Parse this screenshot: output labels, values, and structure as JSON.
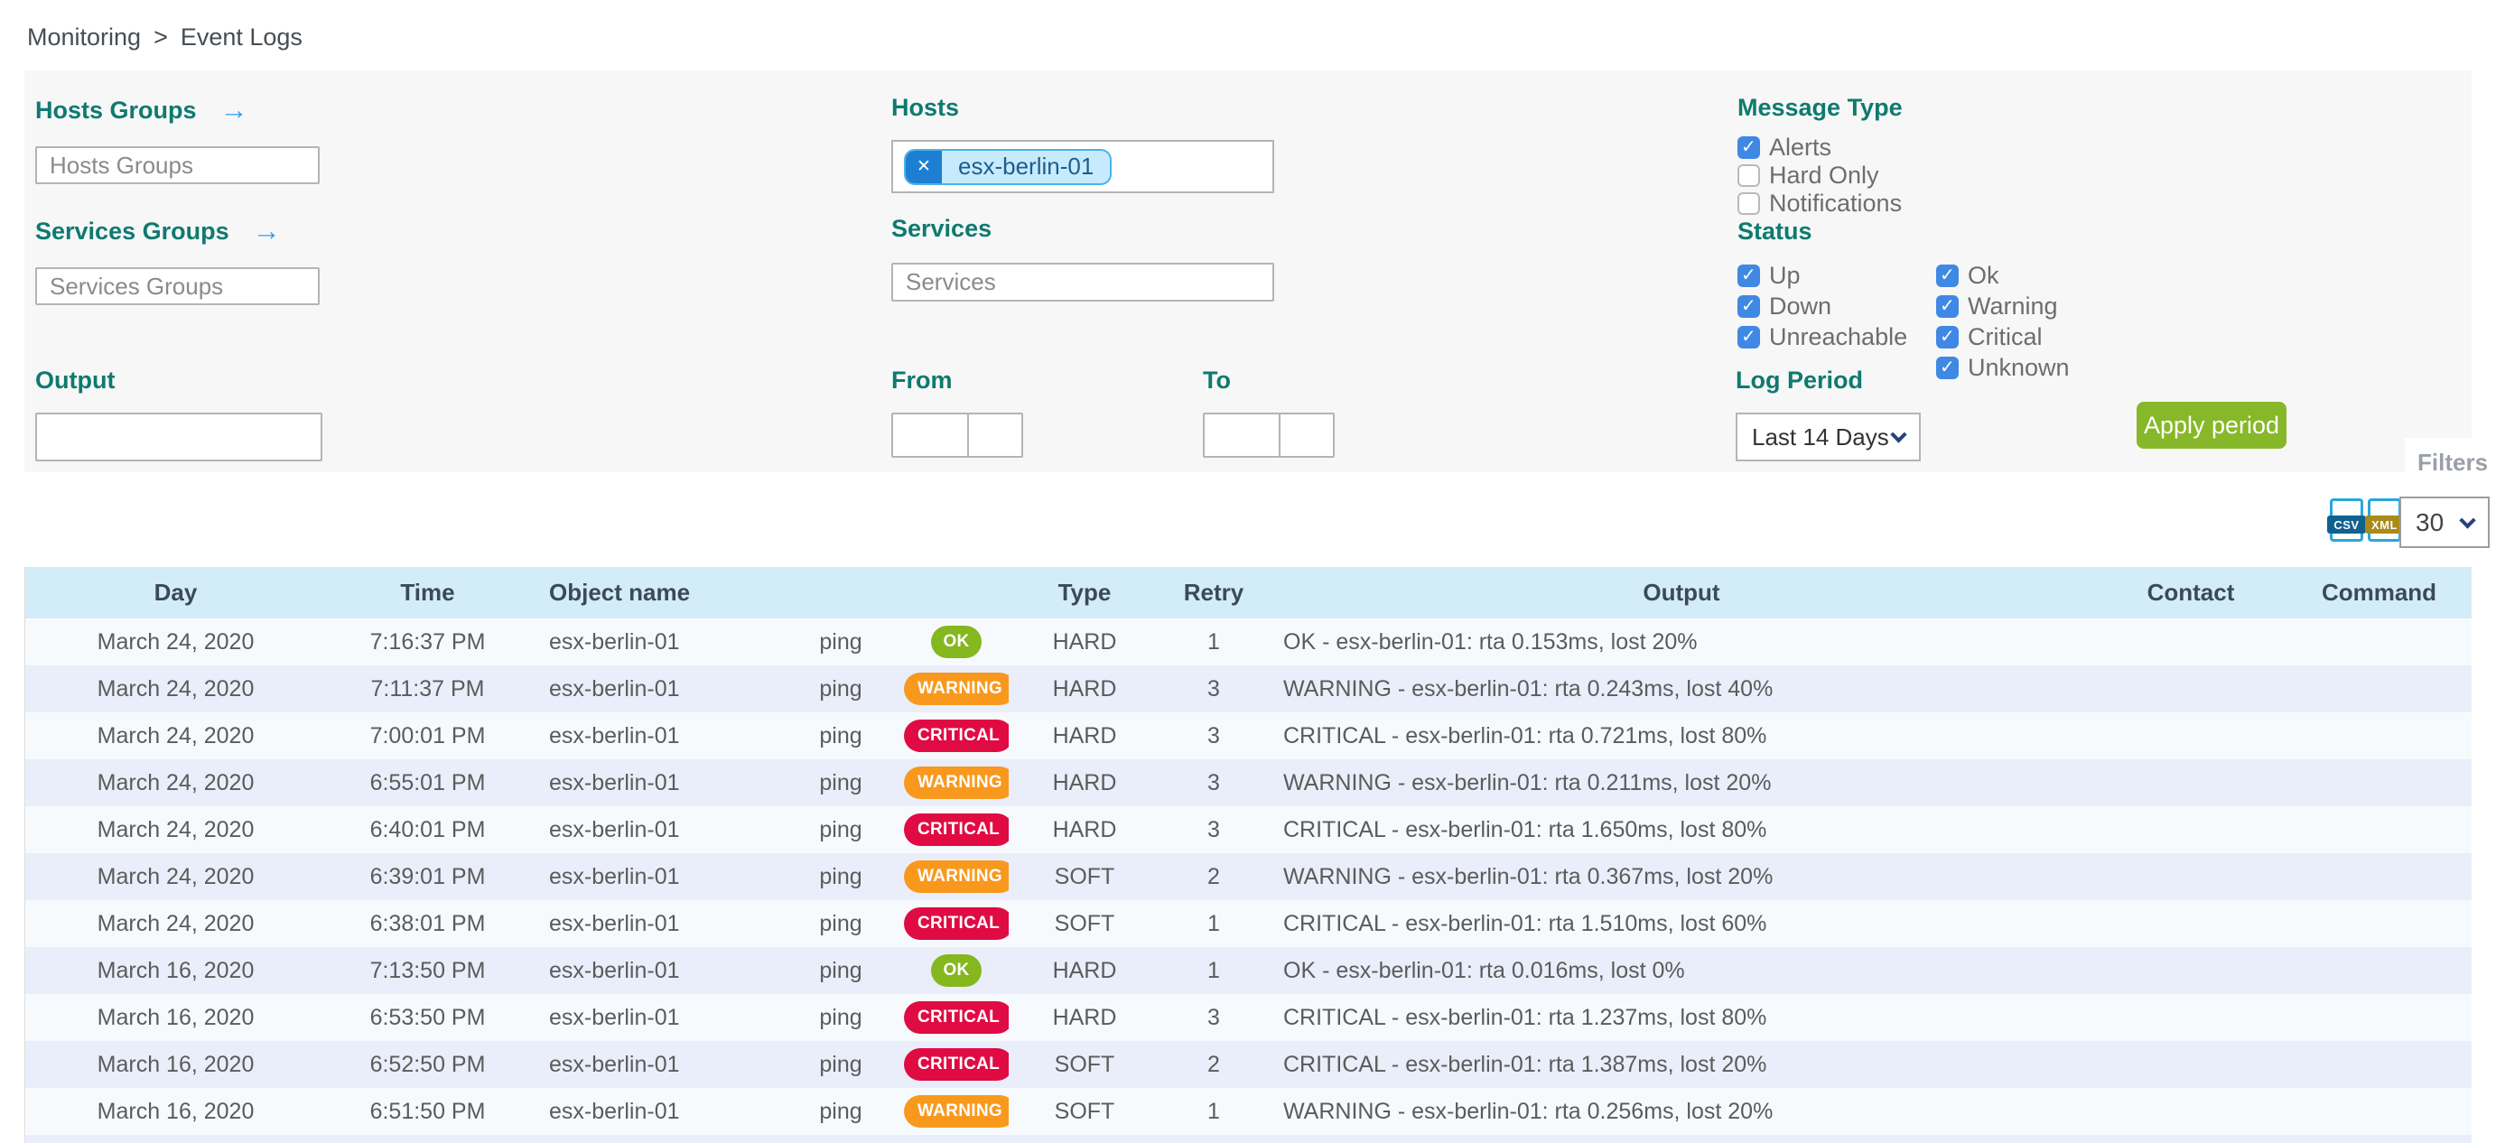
{
  "breadcrumb": {
    "items": [
      "Monitoring",
      "Event Logs"
    ],
    "separator": ">"
  },
  "filters": {
    "hosts_groups": {
      "label": "Hosts Groups",
      "placeholder": "Hosts Groups"
    },
    "services_groups": {
      "label": "Services Groups",
      "placeholder": "Services Groups"
    },
    "hosts": {
      "label": "Hosts",
      "tags": [
        "esx-berlin-01"
      ]
    },
    "services": {
      "label": "Services",
      "placeholder": "Services"
    },
    "output": {
      "label": "Output",
      "value": ""
    },
    "from": {
      "label": "From",
      "date": "",
      "time": ""
    },
    "to": {
      "label": "To",
      "date": "",
      "time": ""
    },
    "message_type": {
      "label": "Message Type",
      "options": [
        {
          "label": "Alerts",
          "checked": true
        },
        {
          "label": "Hard Only",
          "checked": false
        },
        {
          "label": "Notifications",
          "checked": false
        }
      ]
    },
    "status": {
      "label": "Status",
      "columns": [
        [
          {
            "label": "Up",
            "checked": true
          },
          {
            "label": "Down",
            "checked": true
          },
          {
            "label": "Unreachable",
            "checked": true
          }
        ],
        [
          {
            "label": "Ok",
            "checked": true
          },
          {
            "label": "Warning",
            "checked": true
          },
          {
            "label": "Critical",
            "checked": true
          },
          {
            "label": "Unknown",
            "checked": true
          }
        ]
      ]
    },
    "log_period": {
      "label": "Log Period",
      "selected": "Last 14 Days"
    },
    "apply_button": "Apply period",
    "filters_tab": "Filters"
  },
  "toolbar": {
    "export": [
      "CSV",
      "XML"
    ],
    "page_size": "30"
  },
  "table": {
    "headers": [
      "Day",
      "Time",
      "Object name",
      "",
      "",
      "Type",
      "Retry",
      "Output",
      "Contact",
      "Command"
    ],
    "rows": [
      {
        "day": "March 24, 2020",
        "time": "7:16:37 PM",
        "object": "esx-berlin-01",
        "service": "ping",
        "status": "OK",
        "type": "HARD",
        "retry": "1",
        "output": "OK - esx-berlin-01: rta 0.153ms, lost 20%",
        "contact": "",
        "command": ""
      },
      {
        "day": "March 24, 2020",
        "time": "7:11:37 PM",
        "object": "esx-berlin-01",
        "service": "ping",
        "status": "WARNING",
        "type": "HARD",
        "retry": "3",
        "output": "WARNING - esx-berlin-01: rta 0.243ms, lost 40%",
        "contact": "",
        "command": ""
      },
      {
        "day": "March 24, 2020",
        "time": "7:00:01 PM",
        "object": "esx-berlin-01",
        "service": "ping",
        "status": "CRITICAL",
        "type": "HARD",
        "retry": "3",
        "output": "CRITICAL - esx-berlin-01: rta 0.721ms, lost 80%",
        "contact": "",
        "command": ""
      },
      {
        "day": "March 24, 2020",
        "time": "6:55:01 PM",
        "object": "esx-berlin-01",
        "service": "ping",
        "status": "WARNING",
        "type": "HARD",
        "retry": "3",
        "output": "WARNING - esx-berlin-01: rta 0.211ms, lost 20%",
        "contact": "",
        "command": ""
      },
      {
        "day": "March 24, 2020",
        "time": "6:40:01 PM",
        "object": "esx-berlin-01",
        "service": "ping",
        "status": "CRITICAL",
        "type": "HARD",
        "retry": "3",
        "output": "CRITICAL - esx-berlin-01: rta 1.650ms, lost 80%",
        "contact": "",
        "command": ""
      },
      {
        "day": "March 24, 2020",
        "time": "6:39:01 PM",
        "object": "esx-berlin-01",
        "service": "ping",
        "status": "WARNING",
        "type": "SOFT",
        "retry": "2",
        "output": "WARNING - esx-berlin-01: rta 0.367ms, lost 20%",
        "contact": "",
        "command": ""
      },
      {
        "day": "March 24, 2020",
        "time": "6:38:01 PM",
        "object": "esx-berlin-01",
        "service": "ping",
        "status": "CRITICAL",
        "type": "SOFT",
        "retry": "1",
        "output": "CRITICAL - esx-berlin-01: rta 1.510ms, lost 60%",
        "contact": "",
        "command": ""
      },
      {
        "day": "March 16, 2020",
        "time": "7:13:50 PM",
        "object": "esx-berlin-01",
        "service": "ping",
        "status": "OK",
        "type": "HARD",
        "retry": "1",
        "output": "OK - esx-berlin-01: rta 0.016ms, lost 0%",
        "contact": "",
        "command": ""
      },
      {
        "day": "March 16, 2020",
        "time": "6:53:50 PM",
        "object": "esx-berlin-01",
        "service": "ping",
        "status": "CRITICAL",
        "type": "HARD",
        "retry": "3",
        "output": "CRITICAL - esx-berlin-01: rta 1.237ms, lost 80%",
        "contact": "",
        "command": ""
      },
      {
        "day": "March 16, 2020",
        "time": "6:52:50 PM",
        "object": "esx-berlin-01",
        "service": "ping",
        "status": "CRITICAL",
        "type": "SOFT",
        "retry": "2",
        "output": "CRITICAL - esx-berlin-01: rta 1.387ms, lost 20%",
        "contact": "",
        "command": ""
      },
      {
        "day": "March 16, 2020",
        "time": "6:51:50 PM",
        "object": "esx-berlin-01",
        "service": "ping",
        "status": "WARNING",
        "type": "SOFT",
        "retry": "1",
        "output": "WARNING - esx-berlin-01: rta 0.256ms, lost 20%",
        "contact": "",
        "command": ""
      }
    ]
  },
  "colors": {
    "label_teal": "#0e7a70",
    "arrow_blue": "#2d9cf0",
    "checkbox_blue": "#3f88e4",
    "apply_green": "#87b829",
    "header_bg": "#d3edf8",
    "row_alt_bg": "#e9eefa",
    "badge_ok": "#85b71e",
    "badge_warning": "#f8991d",
    "badge_critical": "#e00b43",
    "tag_bg": "#c6ebfe",
    "tag_remove_bg": "#1d7fd1"
  }
}
